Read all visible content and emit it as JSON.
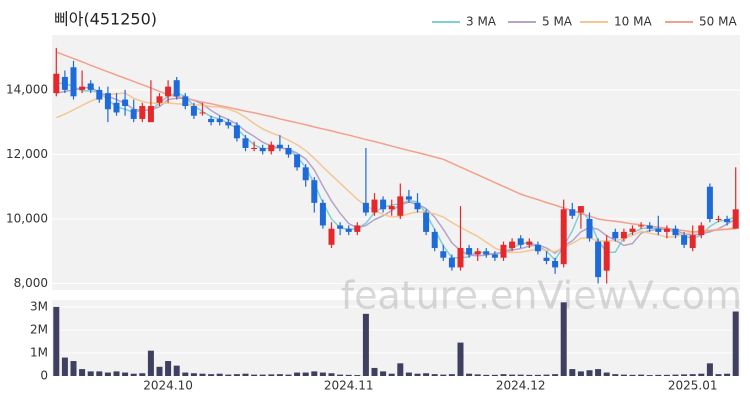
{
  "watermark": "feature.enViewV.com",
  "chart_data": [
    {
      "type": "candlestick",
      "title": "삐아(451250)",
      "open": [
        13900,
        14400,
        14700,
        14000,
        14200,
        14000,
        13900,
        13600,
        13700,
        13400,
        13100,
        13000,
        13600,
        13800,
        14300,
        13800,
        13500,
        13300,
        13100,
        13100,
        13000,
        12900,
        12500,
        12200,
        12200,
        12100,
        12300,
        12200,
        12000,
        11600,
        11200,
        10500,
        9200,
        9800,
        9700,
        9600,
        10500,
        10200,
        10600,
        10300,
        10100,
        10700,
        10500,
        10200,
        9600,
        9000,
        8800,
        8500,
        9100,
        8900,
        9000,
        8900,
        8800,
        9100,
        9400,
        9200,
        9200,
        8800,
        8700,
        8600,
        10300,
        10200,
        10000,
        9300,
        8400,
        9600,
        9400,
        9600,
        9800,
        9800,
        9700,
        9600,
        9700,
        9500,
        9100,
        9500,
        11000,
        10000,
        10000,
        9700
      ],
      "high": [
        15300,
        14600,
        14900,
        14600,
        14300,
        14100,
        14100,
        13900,
        14000,
        13700,
        13600,
        14300,
        13900,
        14300,
        14400,
        13900,
        13600,
        13600,
        13200,
        13200,
        13100,
        13000,
        12600,
        12400,
        12300,
        12400,
        12600,
        12300,
        12000,
        11700,
        11300,
        10600,
        9900,
        9900,
        9800,
        9900,
        12200,
        10800,
        10700,
        10600,
        11100,
        10900,
        10800,
        10300,
        9700,
        9200,
        8900,
        10400,
        9200,
        9100,
        9100,
        9000,
        9300,
        9400,
        9500,
        9400,
        9300,
        9000,
        8800,
        10600,
        10500,
        10400,
        10200,
        9400,
        9500,
        9700,
        9700,
        9800,
        9900,
        9900,
        10100,
        9800,
        9800,
        9600,
        9800,
        9900,
        11100,
        10100,
        10100,
        11600
      ],
      "low": [
        13800,
        13900,
        13700,
        13900,
        13900,
        13600,
        13000,
        13200,
        13200,
        13000,
        13000,
        13000,
        13500,
        13600,
        13700,
        13400,
        13100,
        13200,
        12900,
        12900,
        12800,
        12400,
        12100,
        12100,
        12000,
        12000,
        12100,
        11900,
        11500,
        11000,
        10200,
        9700,
        9100,
        9500,
        9500,
        9500,
        10100,
        10100,
        10200,
        10100,
        10000,
        10500,
        10200,
        9500,
        9000,
        8700,
        8400,
        8400,
        8800,
        8700,
        8800,
        8700,
        8700,
        9000,
        9100,
        9100,
        8900,
        8600,
        8300,
        8500,
        10000,
        9700,
        9300,
        8000,
        8000,
        9300,
        9300,
        9500,
        9700,
        9600,
        9500,
        9400,
        9400,
        9100,
        9000,
        9400,
        9900,
        9900,
        9800,
        9700
      ],
      "close": [
        14500,
        14000,
        13800,
        14100,
        14000,
        13700,
        13400,
        13300,
        13500,
        13100,
        13500,
        13500,
        13800,
        14100,
        13800,
        13500,
        13200,
        13300,
        13000,
        13000,
        12900,
        12500,
        12200,
        12200,
        12100,
        12300,
        12200,
        12000,
        11600,
        11200,
        10500,
        9800,
        9700,
        9700,
        9600,
        9800,
        10200,
        10600,
        10300,
        10400,
        10700,
        10600,
        10300,
        9600,
        9100,
        8800,
        8500,
        9100,
        8900,
        9000,
        8900,
        8800,
        9200,
        9300,
        9200,
        9300,
        9000,
        8700,
        8500,
        10300,
        10100,
        10400,
        9400,
        8200,
        9300,
        9400,
        9600,
        9700,
        9800,
        9700,
        9600,
        9700,
        9500,
        9200,
        9500,
        9800,
        10000,
        10000,
        9900,
        10300
      ],
      "up_color": "#e5282c",
      "down_color": "#1e6ad8",
      "series": [
        {
          "name": "3 MA",
          "color": "#7fcfd3",
          "values": [
            14200,
            14200,
            14100,
            13970,
            13970,
            13930,
            13700,
            13470,
            13400,
            13300,
            13370,
            13370,
            13600,
            13800,
            13900,
            13800,
            13500,
            13330,
            13170,
            13100,
            12970,
            12800,
            12530,
            12300,
            12170,
            12200,
            12200,
            12170,
            11930,
            11600,
            11100,
            10500,
            10000,
            9730,
            9670,
            9700,
            9870,
            10200,
            10370,
            10430,
            10470,
            10570,
            10530,
            10170,
            9670,
            9170,
            8800,
            8800,
            8830,
            9000,
            8930,
            8900,
            8970,
            9100,
            9230,
            9270,
            9170,
            9000,
            8730,
            9170,
            9630,
            10270,
            9970,
            9330,
            8970,
            8970,
            9430,
            9570,
            9700,
            9730,
            9700,
            9670,
            9600,
            9470,
            9400,
            9500,
            9770,
            9930,
            9970,
            10070
          ]
        },
        {
          "name": "5 MA",
          "color": "#b5a3c9",
          "values": [
            13900,
            13950,
            14000,
            14050,
            14080,
            13920,
            13800,
            13700,
            13580,
            13400,
            13360,
            13380,
            13480,
            13700,
            13740,
            13740,
            13680,
            13560,
            13360,
            13200,
            13080,
            12940,
            12720,
            12560,
            12380,
            12260,
            12200,
            12160,
            12040,
            11860,
            11520,
            11020,
            10560,
            10180,
            9860,
            9720,
            9800,
            9980,
            10100,
            10260,
            10440,
            10520,
            10460,
            10320,
            10060,
            9680,
            9260,
            9020,
            8880,
            8860,
            8880,
            8940,
            8960,
            9040,
            9080,
            9160,
            9200,
            9100,
            8940,
            9160,
            9320,
            9600,
            9740,
            9680,
            9480,
            9340,
            9180,
            9240,
            9560,
            9640,
            9680,
            9700,
            9660,
            9540,
            9500,
            9540,
            9600,
            9700,
            9840,
            10000
          ]
        },
        {
          "name": "10 MA",
          "color": "#f4c793",
          "values": [
            13140,
            13250,
            13380,
            13520,
            13650,
            13760,
            13850,
            13880,
            13900,
            13740,
            13640,
            13590,
            13590,
            13590,
            13570,
            13550,
            13530,
            13530,
            13480,
            13470,
            13410,
            13310,
            13150,
            12960,
            12790,
            12670,
            12570,
            12440,
            12300,
            12120,
            11880,
            11610,
            11360,
            11110,
            10860,
            10610,
            10410,
            10270,
            10140,
            10060,
            10080,
            10160,
            10220,
            10210,
            10160,
            10060,
            9890,
            9740,
            9600,
            9460,
            9280,
            9100,
            8990,
            8960,
            8970,
            9020,
            9070,
            9030,
            8990,
            9120,
            9240,
            9400,
            9420,
            9310,
            9320,
            9330,
            9390,
            9490,
            9620,
            9560,
            9510,
            9440,
            9450,
            9550,
            9570,
            9610,
            9650,
            9680,
            9690,
            9750
          ]
        },
        {
          "name": "50 MA",
          "color": "#f3a08c",
          "values": [
            15170,
            15070,
            14970,
            14870,
            14760,
            14660,
            14560,
            14460,
            14360,
            14260,
            14160,
            14060,
            13950,
            13850,
            13790,
            13740,
            13680,
            13620,
            13570,
            13510,
            13460,
            13400,
            13340,
            13290,
            13230,
            13170,
            13100,
            13040,
            12980,
            12920,
            12850,
            12790,
            12730,
            12660,
            12600,
            12530,
            12460,
            12400,
            12330,
            12260,
            12190,
            12120,
            12060,
            11990,
            11920,
            11850,
            11730,
            11610,
            11490,
            11370,
            11250,
            11130,
            11010,
            10890,
            10770,
            10680,
            10600,
            10510,
            10430,
            10340,
            10260,
            10170,
            10090,
            10000,
            9960,
            9930,
            9890,
            9850,
            9820,
            9780,
            9750,
            9710,
            9670,
            9640,
            9600,
            9620,
            9640,
            9660,
            9680,
            9700
          ]
        }
      ],
      "ylim": [
        7800,
        15700
      ],
      "yticks": [
        {
          "value": 8000,
          "label": "8,000"
        },
        {
          "value": 10000,
          "label": "10,000"
        },
        {
          "value": 12000,
          "label": "12,000"
        },
        {
          "value": 14000,
          "label": "14,000"
        }
      ],
      "grid": true
    },
    {
      "type": "bar",
      "color": "#3f3f5f",
      "categories": [
        null,
        null,
        null,
        null,
        null,
        null,
        null,
        null,
        null,
        null,
        null,
        null,
        null,
        "2024.10",
        null,
        null,
        null,
        null,
        null,
        null,
        null,
        null,
        null,
        null,
        null,
        null,
        null,
        null,
        null,
        null,
        null,
        null,
        null,
        null,
        "2024.11",
        null,
        null,
        null,
        null,
        null,
        null,
        null,
        null,
        null,
        null,
        null,
        null,
        null,
        null,
        null,
        null,
        null,
        null,
        null,
        "2024.12",
        null,
        null,
        null,
        null,
        null,
        null,
        null,
        null,
        null,
        null,
        null,
        null,
        null,
        null,
        null,
        null,
        null,
        null,
        null,
        "2025.01",
        null,
        null,
        null,
        null,
        null
      ],
      "values": [
        3000000,
        800000,
        650000,
        300000,
        200000,
        200000,
        150000,
        200000,
        150000,
        100000,
        120000,
        1100000,
        400000,
        650000,
        450000,
        150000,
        120000,
        100000,
        80000,
        100000,
        60000,
        80000,
        100000,
        60000,
        60000,
        70000,
        80000,
        60000,
        150000,
        150000,
        200000,
        150000,
        120000,
        60000,
        50000,
        40000,
        2700000,
        350000,
        200000,
        100000,
        550000,
        150000,
        100000,
        120000,
        80000,
        60000,
        80000,
        1450000,
        100000,
        70000,
        50000,
        50000,
        80000,
        60000,
        60000,
        50000,
        50000,
        60000,
        80000,
        3200000,
        300000,
        200000,
        250000,
        300000,
        150000,
        80000,
        60000,
        50000,
        60000,
        40000,
        50000,
        50000,
        60000,
        70000,
        80000,
        100000,
        550000,
        80000,
        100000,
        2800000
      ],
      "ylim": [
        0,
        3300000
      ],
      "yticks": [
        0,
        {
          "value": 1000000,
          "label": "1M"
        },
        {
          "value": 2000000,
          "label": "2M"
        },
        {
          "value": 3000000,
          "label": "3M"
        }
      ],
      "grid": true
    }
  ]
}
